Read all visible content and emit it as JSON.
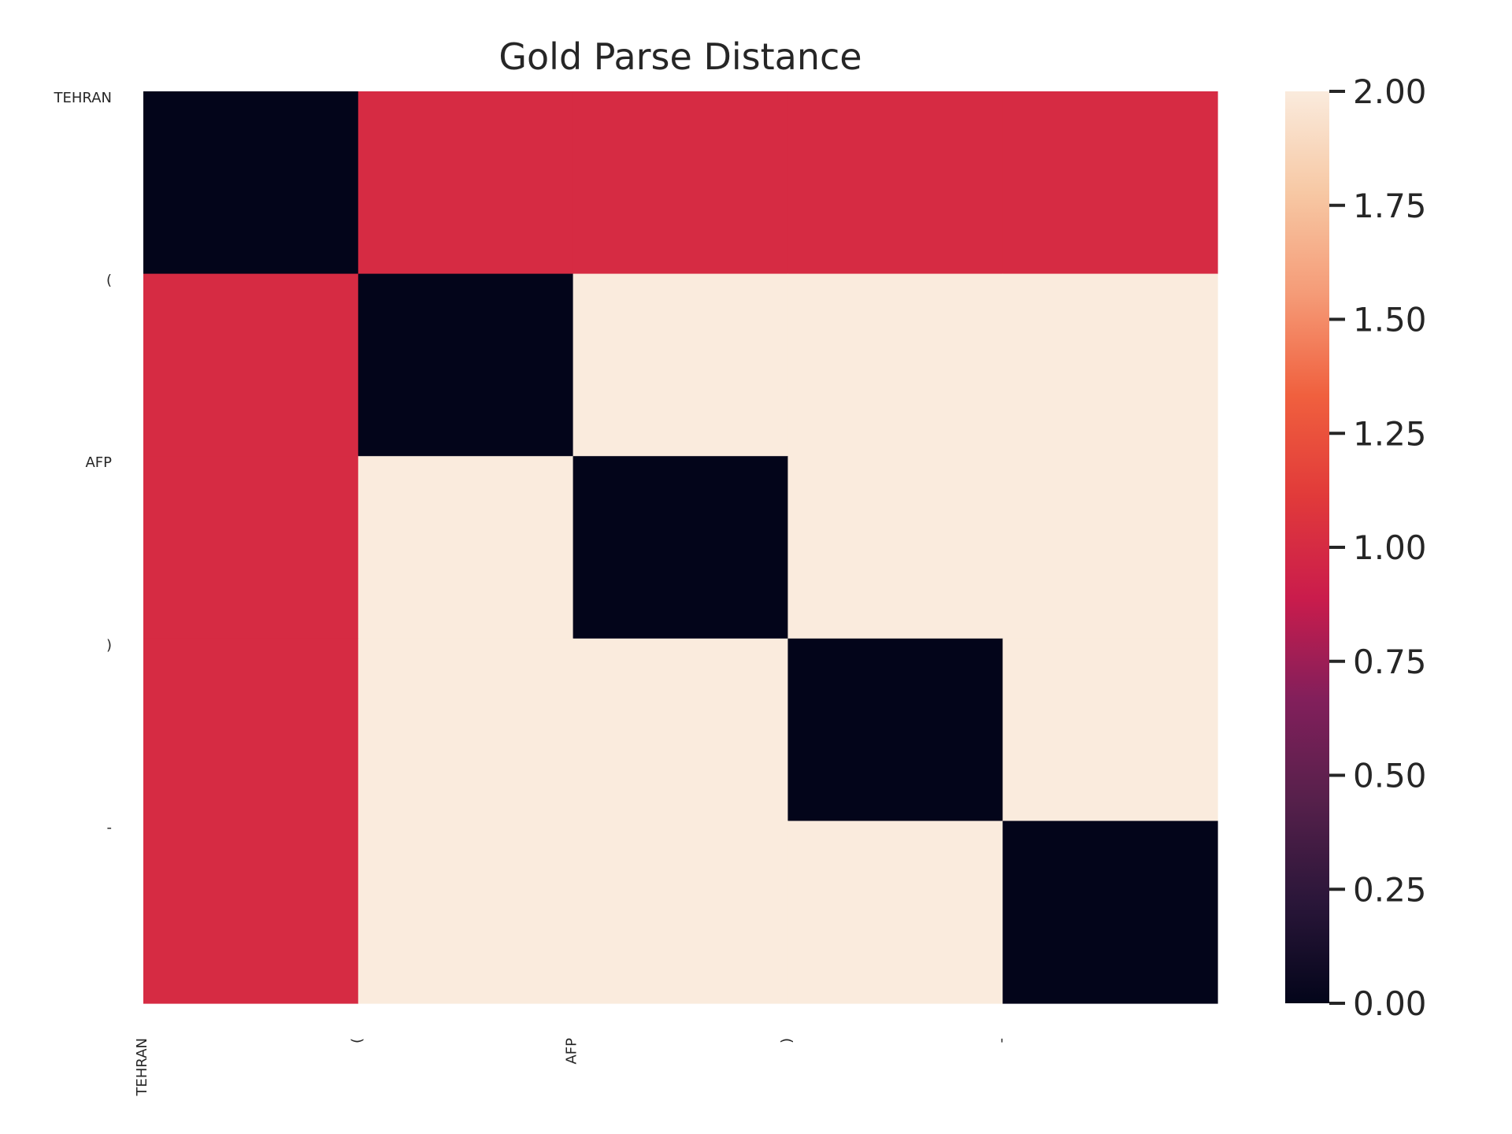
{
  "chart_data": {
    "type": "heatmap",
    "title": "Gold Parse Distance",
    "xlabel": "",
    "ylabel": "",
    "row_labels": [
      "TEHRAN",
      "(",
      "AFP",
      ")",
      "-"
    ],
    "col_labels": [
      "TEHRAN",
      "(",
      "AFP",
      ")",
      "-"
    ],
    "values": [
      [
        0,
        1,
        1,
        1,
        1
      ],
      [
        1,
        0,
        2,
        2,
        2
      ],
      [
        1,
        2,
        0,
        2,
        2
      ],
      [
        1,
        2,
        2,
        0,
        2
      ],
      [
        1,
        2,
        2,
        2,
        0
      ]
    ],
    "colorbar": {
      "min": 0,
      "max": 2,
      "ticks": [
        "0.00",
        "0.25",
        "0.50",
        "0.75",
        "1.00",
        "1.25",
        "1.50",
        "1.75",
        "2.00"
      ],
      "colormap": "rocket",
      "colors": [
        "#03051a",
        "#2a1639",
        "#56204b",
        "#821f5b",
        "#ca1c4c",
        "#e13a3a",
        "#f0603e",
        "#f59b77",
        "#f7c8a4",
        "#faebdd"
      ]
    },
    "grid": false
  }
}
